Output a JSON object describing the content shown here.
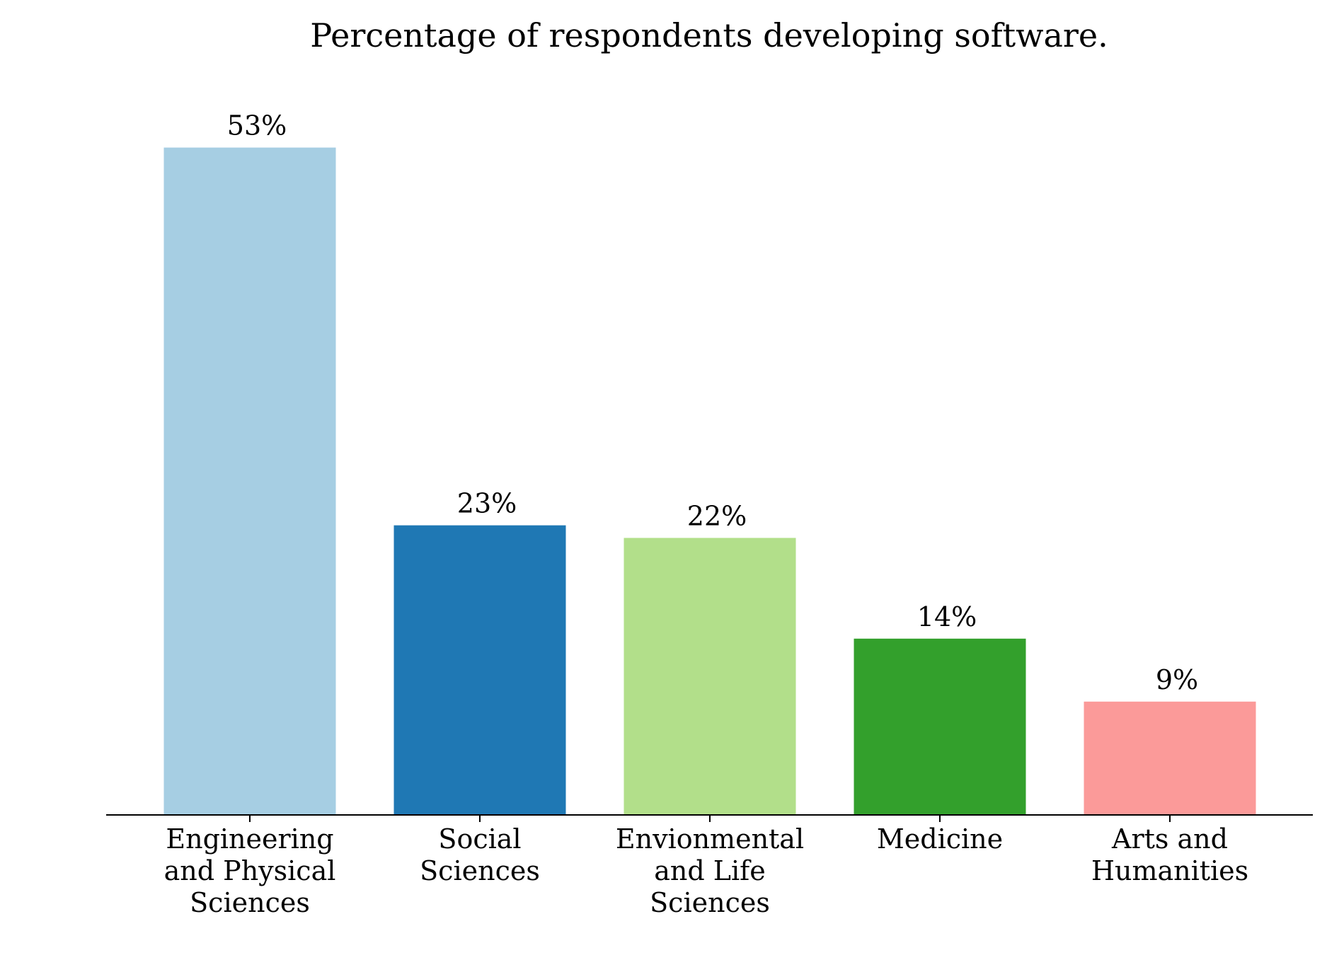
{
  "chart_data": {
    "type": "bar",
    "title": "Percentage of respondents developing software.",
    "xlabel": "",
    "ylabel": "",
    "ylim": [
      0,
      56
    ],
    "grid": false,
    "y_axis_visible": false,
    "categories": [
      [
        "Engineering",
        "and Physical",
        "Sciences"
      ],
      [
        "Social",
        "Sciences"
      ],
      [
        "Envionmental",
        "and Life",
        "Sciences"
      ],
      [
        "Medicine"
      ],
      [
        "Arts and",
        "Humanities"
      ]
    ],
    "values": [
      53,
      23,
      22,
      14,
      9
    ],
    "data_labels": [
      "53%",
      "23%",
      "22%",
      "14%",
      "9%"
    ],
    "colors": [
      "#a6cee3",
      "#1f78b4",
      "#b2df8a",
      "#33a02c",
      "#fb9a99"
    ]
  }
}
